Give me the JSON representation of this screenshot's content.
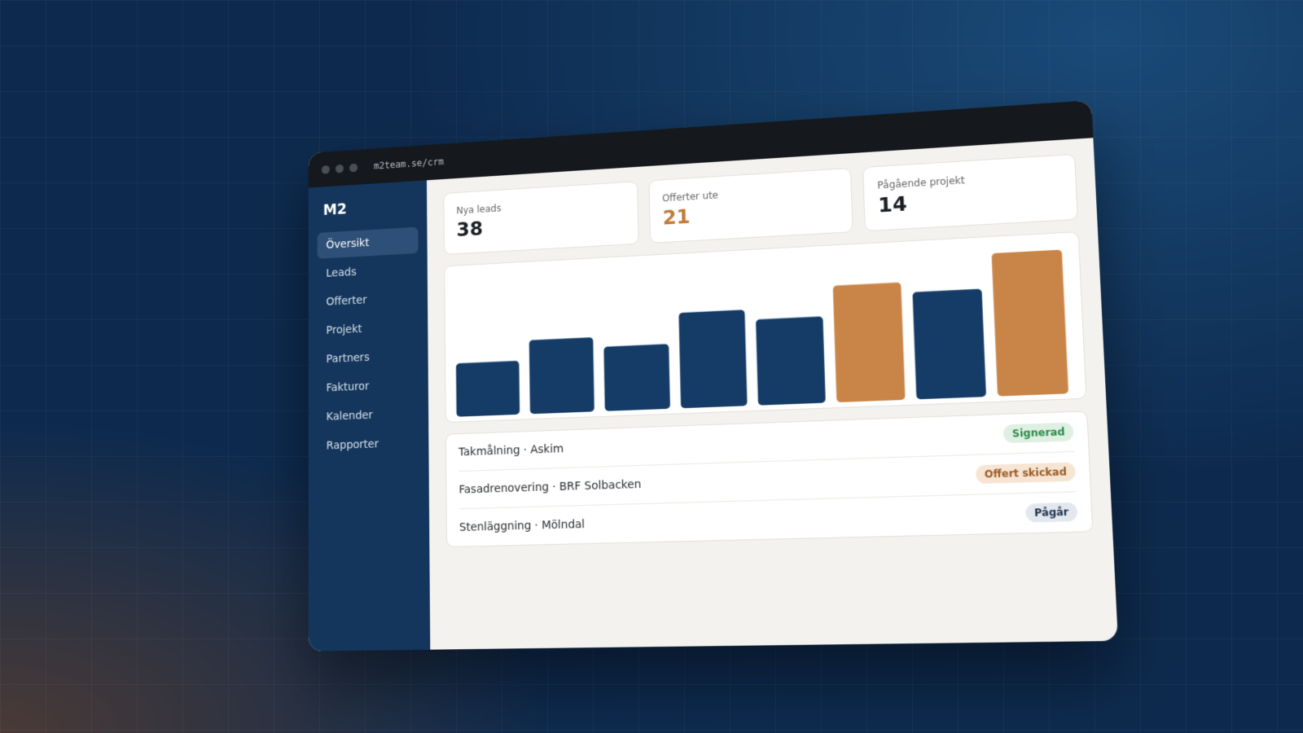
{
  "browser": {
    "url": "m2team.se/crm"
  },
  "sidebar": {
    "logo": "M2",
    "nav": [
      "Översikt",
      "Leads",
      "Offerter",
      "Projekt",
      "Partners",
      "Fakturor",
      "Kalender",
      "Rapporter"
    ],
    "active": 0
  },
  "stats": [
    {
      "label": "Nya leads",
      "value": 38,
      "color": "#1b1f24"
    },
    {
      "label": "Offerter ute",
      "value": 21,
      "color": "#c07a3c"
    },
    {
      "label": "Pågående projekt",
      "value": 14,
      "color": "#1b1f24"
    }
  ],
  "chart_data": {
    "type": "bar",
    "values": [
      64,
      88,
      76,
      112,
      100,
      135,
      123,
      163
    ],
    "colors": [
      "#143c66",
      "#143c66",
      "#143c66",
      "#143c66",
      "#143c66",
      "#c98548",
      "#143c66",
      "#c98548"
    ]
  },
  "list": [
    {
      "title": "Takmålning · Askim",
      "status": "Signerad",
      "tone": "green"
    },
    {
      "title": "Fasadrenovering · BRF Solbacken",
      "status": "Offert skickad",
      "tone": "orange"
    },
    {
      "title": "Stenläggning · Mölndal",
      "status": "Pågår",
      "tone": "gray"
    }
  ]
}
